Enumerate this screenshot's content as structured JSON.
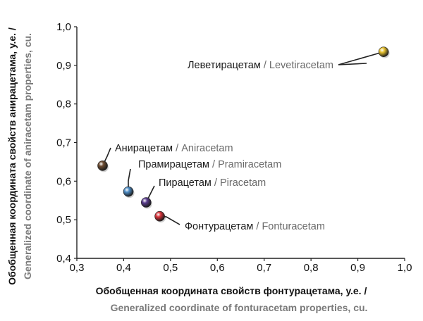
{
  "chart_data": {
    "type": "scatter",
    "title": "",
    "xlabel_ru": "Обобщенная координата свойств фонтурацетама, у.е. /",
    "xlabel_en": "Generalized coordinate of fonturacetam properties, cu.",
    "ylabel_ru": "Обобщенная координата свойств анирацетама, у.е. /",
    "ylabel_en": "Generalized coordinate of aniracetam properties, cu.",
    "xlim": [
      0.3,
      1.0
    ],
    "ylim": [
      0.4,
      1.0
    ],
    "x_ticks": [
      "0,3",
      "0,4",
      "0,5",
      "0,6",
      "0,7",
      "0,8",
      "0,9",
      "1,0"
    ],
    "y_ticks": [
      "0,4",
      "0,5",
      "0,6",
      "0,7",
      "0,8",
      "0,9",
      "1,0"
    ],
    "grid": false,
    "points": [
      {
        "label_ru": "Леветирацетам",
        "label_en": "Levetiracetam",
        "x": 0.955,
        "y": 0.935,
        "color": "#e7c12d"
      },
      {
        "label_ru": "Анирацетам",
        "label_en": "Aniracetam",
        "x": 0.355,
        "y": 0.64,
        "color": "#6b4a2f"
      },
      {
        "label_ru": "Прамирацетам",
        "label_en": "Pramiracetam",
        "x": 0.41,
        "y": 0.573,
        "color": "#4d8dc6"
      },
      {
        "label_ru": "Пирацетам",
        "label_en": "Piracetam",
        "x": 0.448,
        "y": 0.545,
        "color": "#5a3c8e"
      },
      {
        "label_ru": "Фонтурацетам",
        "label_en": "Fonturacetam",
        "x": 0.477,
        "y": 0.509,
        "color": "#d9343b"
      }
    ]
  }
}
